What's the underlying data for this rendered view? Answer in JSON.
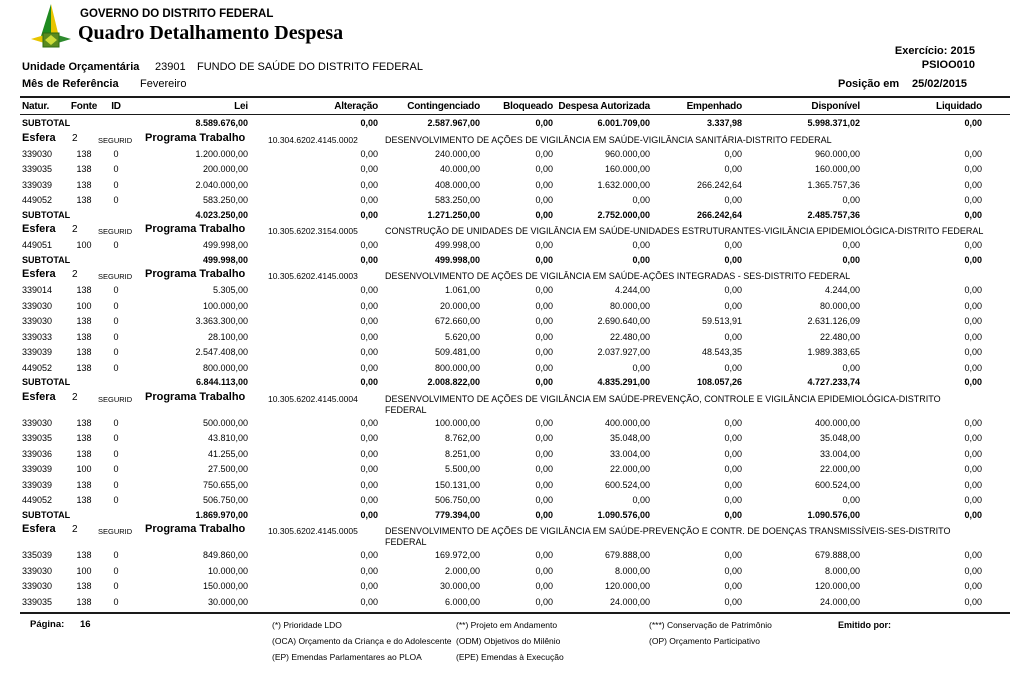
{
  "header": {
    "org_name": "GOVERNO DO DISTRITO FEDERAL",
    "report_title": "Quadro Detalhamento Despesa",
    "exercicio_label": "Exercício:",
    "exercicio_value": "2015",
    "report_code": "PSIOO010",
    "unidade_label": "Unidade Orçamentária",
    "unidade_code": "23901",
    "unidade_name": "FUNDO DE SAÚDE DO DISTRITO FEDERAL",
    "mes_label": "Mês de Referência",
    "mes_value": "Fevereiro",
    "posicao_label": "Posição em",
    "posicao_value": "25/02/2015"
  },
  "table": {
    "columns": [
      "Natur.",
      "Fonte",
      "ID",
      "Lei",
      "Alteração",
      "Contingenciado",
      "Bloqueado",
      "Despesa Autorizada",
      "Empenhado",
      "Disponível",
      "Liquidado"
    ],
    "row_labels": {
      "subtotal": "SUBTOTAL",
      "esfera": "Esfera",
      "programa": "Programa Trabalho"
    },
    "rows": [
      {
        "type": "subtotal",
        "lei": "8.589.676,00",
        "alteracao": "0,00",
        "contingenciado": "2.587.967,00",
        "bloqueado": "0,00",
        "despesa": "6.001.709,00",
        "empenhado": "3.337,98",
        "disponivel": "5.998.371,02",
        "liquidado": "0,00"
      },
      {
        "type": "esfera",
        "esfera": "2",
        "regime": "SEGURID",
        "code": "10.304.6202.4145.0002",
        "desc": "DESENVOLVIMENTO DE AÇÕES DE VIGILÂNCIA EM SAÚDE-VIGILÂNCIA SANITÁRIA-DISTRITO FEDERAL"
      },
      {
        "type": "data",
        "natur": "339030",
        "fonte": "138",
        "id": "0",
        "lei": "1.200.000,00",
        "alteracao": "0,00",
        "contingenciado": "240.000,00",
        "bloqueado": "0,00",
        "despesa": "960.000,00",
        "empenhado": "0,00",
        "disponivel": "960.000,00",
        "liquidado": "0,00"
      },
      {
        "type": "data",
        "natur": "339035",
        "fonte": "138",
        "id": "0",
        "lei": "200.000,00",
        "alteracao": "0,00",
        "contingenciado": "40.000,00",
        "bloqueado": "0,00",
        "despesa": "160.000,00",
        "empenhado": "0,00",
        "disponivel": "160.000,00",
        "liquidado": "0,00"
      },
      {
        "type": "data",
        "natur": "339039",
        "fonte": "138",
        "id": "0",
        "lei": "2.040.000,00",
        "alteracao": "0,00",
        "contingenciado": "408.000,00",
        "bloqueado": "0,00",
        "despesa": "1.632.000,00",
        "empenhado": "266.242,64",
        "disponivel": "1.365.757,36",
        "liquidado": "0,00"
      },
      {
        "type": "data",
        "natur": "449052",
        "fonte": "138",
        "id": "0",
        "lei": "583.250,00",
        "alteracao": "0,00",
        "contingenciado": "583.250,00",
        "bloqueado": "0,00",
        "despesa": "0,00",
        "empenhado": "0,00",
        "disponivel": "0,00",
        "liquidado": "0,00"
      },
      {
        "type": "subtotal",
        "lei": "4.023.250,00",
        "alteracao": "0,00",
        "contingenciado": "1.271.250,00",
        "bloqueado": "0,00",
        "despesa": "2.752.000,00",
        "empenhado": "266.242,64",
        "disponivel": "2.485.757,36",
        "liquidado": "0,00"
      },
      {
        "type": "esfera",
        "esfera": "2",
        "regime": "SEGURID",
        "code": "10.305.6202.3154.0005",
        "desc": "CONSTRUÇÃO DE UNIDADES DE VIGILÂNCIA EM SAÚDE-UNIDADES ESTRUTURANTES-VIGILÂNCIA EPIDEMIOLÓGICA-DISTRITO FEDERAL"
      },
      {
        "type": "data",
        "natur": "449051",
        "fonte": "100",
        "id": "0",
        "lei": "499.998,00",
        "alteracao": "0,00",
        "contingenciado": "499.998,00",
        "bloqueado": "0,00",
        "despesa": "0,00",
        "empenhado": "0,00",
        "disponivel": "0,00",
        "liquidado": "0,00"
      },
      {
        "type": "subtotal",
        "lei": "499.998,00",
        "alteracao": "0,00",
        "contingenciado": "499.998,00",
        "bloqueado": "0,00",
        "despesa": "0,00",
        "empenhado": "0,00",
        "disponivel": "0,00",
        "liquidado": "0,00"
      },
      {
        "type": "esfera",
        "esfera": "2",
        "regime": "SEGURID",
        "code": "10.305.6202.4145.0003",
        "desc": "DESENVOLVIMENTO DE AÇÕES DE VIGILÂNCIA EM SAÚDE-AÇÕES INTEGRADAS - SES-DISTRITO FEDERAL"
      },
      {
        "type": "data",
        "natur": "339014",
        "fonte": "138",
        "id": "0",
        "lei": "5.305,00",
        "alteracao": "0,00",
        "contingenciado": "1.061,00",
        "bloqueado": "0,00",
        "despesa": "4.244,00",
        "empenhado": "0,00",
        "disponivel": "4.244,00",
        "liquidado": "0,00"
      },
      {
        "type": "data",
        "natur": "339030",
        "fonte": "100",
        "id": "0",
        "lei": "100.000,00",
        "alteracao": "0,00",
        "contingenciado": "20.000,00",
        "bloqueado": "0,00",
        "despesa": "80.000,00",
        "empenhado": "0,00",
        "disponivel": "80.000,00",
        "liquidado": "0,00"
      },
      {
        "type": "data",
        "natur": "339030",
        "fonte": "138",
        "id": "0",
        "lei": "3.363.300,00",
        "alteracao": "0,00",
        "contingenciado": "672.660,00",
        "bloqueado": "0,00",
        "despesa": "2.690.640,00",
        "empenhado": "59.513,91",
        "disponivel": "2.631.126,09",
        "liquidado": "0,00"
      },
      {
        "type": "data",
        "natur": "339033",
        "fonte": "138",
        "id": "0",
        "lei": "28.100,00",
        "alteracao": "0,00",
        "contingenciado": "5.620,00",
        "bloqueado": "0,00",
        "despesa": "22.480,00",
        "empenhado": "0,00",
        "disponivel": "22.480,00",
        "liquidado": "0,00"
      },
      {
        "type": "data",
        "natur": "339039",
        "fonte": "138",
        "id": "0",
        "lei": "2.547.408,00",
        "alteracao": "0,00",
        "contingenciado": "509.481,00",
        "bloqueado": "0,00",
        "despesa": "2.037.927,00",
        "empenhado": "48.543,35",
        "disponivel": "1.989.383,65",
        "liquidado": "0,00"
      },
      {
        "type": "data",
        "natur": "449052",
        "fonte": "138",
        "id": "0",
        "lei": "800.000,00",
        "alteracao": "0,00",
        "contingenciado": "800.000,00",
        "bloqueado": "0,00",
        "despesa": "0,00",
        "empenhado": "0,00",
        "disponivel": "0,00",
        "liquidado": "0,00"
      },
      {
        "type": "subtotal",
        "lei": "6.844.113,00",
        "alteracao": "0,00",
        "contingenciado": "2.008.822,00",
        "bloqueado": "0,00",
        "despesa": "4.835.291,00",
        "empenhado": "108.057,26",
        "disponivel": "4.727.233,74",
        "liquidado": "0,00"
      },
      {
        "type": "esfera",
        "esfera": "2",
        "regime": "SEGURID",
        "code": "10.305.6202.4145.0004",
        "desc": "DESENVOLVIMENTO DE AÇÕES DE VIGILÂNCIA EM SAÚDE-PREVENÇÃO, CONTROLE E VIGILÂNCIA EPIDEMIOLÓGICA-DISTRITO",
        "desc2": "FEDERAL"
      },
      {
        "type": "data",
        "natur": "339030",
        "fonte": "138",
        "id": "0",
        "lei": "500.000,00",
        "alteracao": "0,00",
        "contingenciado": "100.000,00",
        "bloqueado": "0,00",
        "despesa": "400.000,00",
        "empenhado": "0,00",
        "disponivel": "400.000,00",
        "liquidado": "0,00"
      },
      {
        "type": "data",
        "natur": "339035",
        "fonte": "138",
        "id": "0",
        "lei": "43.810,00",
        "alteracao": "0,00",
        "contingenciado": "8.762,00",
        "bloqueado": "0,00",
        "despesa": "35.048,00",
        "empenhado": "0,00",
        "disponivel": "35.048,00",
        "liquidado": "0,00"
      },
      {
        "type": "data",
        "natur": "339036",
        "fonte": "138",
        "id": "0",
        "lei": "41.255,00",
        "alteracao": "0,00",
        "contingenciado": "8.251,00",
        "bloqueado": "0,00",
        "despesa": "33.004,00",
        "empenhado": "0,00",
        "disponivel": "33.004,00",
        "liquidado": "0,00"
      },
      {
        "type": "data",
        "natur": "339039",
        "fonte": "100",
        "id": "0",
        "lei": "27.500,00",
        "alteracao": "0,00",
        "contingenciado": "5.500,00",
        "bloqueado": "0,00",
        "despesa": "22.000,00",
        "empenhado": "0,00",
        "disponivel": "22.000,00",
        "liquidado": "0,00"
      },
      {
        "type": "data",
        "natur": "339039",
        "fonte": "138",
        "id": "0",
        "lei": "750.655,00",
        "alteracao": "0,00",
        "contingenciado": "150.131,00",
        "bloqueado": "0,00",
        "despesa": "600.524,00",
        "empenhado": "0,00",
        "disponivel": "600.524,00",
        "liquidado": "0,00"
      },
      {
        "type": "data",
        "natur": "449052",
        "fonte": "138",
        "id": "0",
        "lei": "506.750,00",
        "alteracao": "0,00",
        "contingenciado": "506.750,00",
        "bloqueado": "0,00",
        "despesa": "0,00",
        "empenhado": "0,00",
        "disponivel": "0,00",
        "liquidado": "0,00"
      },
      {
        "type": "subtotal",
        "lei": "1.869.970,00",
        "alteracao": "0,00",
        "contingenciado": "779.394,00",
        "bloqueado": "0,00",
        "despesa": "1.090.576,00",
        "empenhado": "0,00",
        "disponivel": "1.090.576,00",
        "liquidado": "0,00"
      },
      {
        "type": "esfera",
        "esfera": "2",
        "regime": "SEGURID",
        "code": "10.305.6202.4145.0005",
        "desc": "DESENVOLVIMENTO DE AÇÕES DE VIGILÂNCIA EM SAÚDE-PREVENÇÃO E CONTR. DE DOENÇAS TRANSMISSÍVEIS-SES-DISTRITO",
        "desc2": "FEDERAL"
      },
      {
        "type": "data",
        "natur": "335039",
        "fonte": "138",
        "id": "0",
        "lei": "849.860,00",
        "alteracao": "0,00",
        "contingenciado": "169.972,00",
        "bloqueado": "0,00",
        "despesa": "679.888,00",
        "empenhado": "0,00",
        "disponivel": "679.888,00",
        "liquidado": "0,00"
      },
      {
        "type": "data",
        "natur": "339030",
        "fonte": "100",
        "id": "0",
        "lei": "10.000,00",
        "alteracao": "0,00",
        "contingenciado": "2.000,00",
        "bloqueado": "0,00",
        "despesa": "8.000,00",
        "empenhado": "0,00",
        "disponivel": "8.000,00",
        "liquidado": "0,00"
      },
      {
        "type": "data",
        "natur": "339030",
        "fonte": "138",
        "id": "0",
        "lei": "150.000,00",
        "alteracao": "0,00",
        "contingenciado": "30.000,00",
        "bloqueado": "0,00",
        "despesa": "120.000,00",
        "empenhado": "0,00",
        "disponivel": "120.000,00",
        "liquidado": "0,00"
      },
      {
        "type": "data",
        "natur": "339035",
        "fonte": "138",
        "id": "0",
        "lei": "30.000,00",
        "alteracao": "0,00",
        "contingenciado": "6.000,00",
        "bloqueado": "0,00",
        "despesa": "24.000,00",
        "empenhado": "0,00",
        "disponivel": "24.000,00",
        "liquidado": "0,00"
      }
    ]
  },
  "footer": {
    "pagina_label": "Página:",
    "pagina_value": "16",
    "legend_col1": [
      "(*)  Prioridade LDO",
      "(OCA)  Orçamento da Criança e do Adolescente",
      "(EP)  Emendas Parlamentares ao PLOA"
    ],
    "legend_col2": [
      "(**)  Projeto em Andamento",
      "(ODM) Objetivos do Milênio",
      "(EPE) Emendas à Execução"
    ],
    "legend_col3": [
      "(***)  Conservação de Patrimônio",
      "(OP) Orçamento Participativo"
    ],
    "emitido_label": "Emitido por:"
  }
}
